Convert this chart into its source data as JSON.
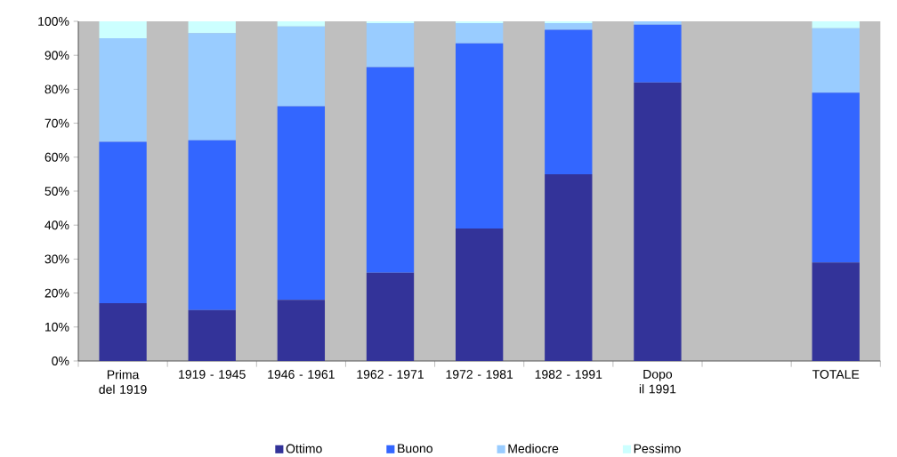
{
  "chart_data": {
    "type": "bar",
    "stacked": true,
    "categories": [
      "Prima del 1919",
      "1919 - 1945",
      "1946 - 1961",
      "1962 - 1971",
      "1972 - 1981",
      "1982 - 1991",
      "Dopo il 1991",
      null,
      "TOTALE"
    ],
    "series": [
      {
        "name": "Ottimo",
        "color": "#333399",
        "values": [
          17,
          15,
          18,
          26,
          39,
          55,
          82,
          null,
          29
        ]
      },
      {
        "name": "Buono",
        "color": "#3366ff",
        "values": [
          47.5,
          50,
          57,
          60.5,
          54.5,
          42.5,
          17,
          null,
          50
        ]
      },
      {
        "name": "Mediocre",
        "color": "#99ccff",
        "values": [
          30.5,
          31.5,
          23.5,
          13,
          6,
          2,
          1,
          null,
          19
        ]
      },
      {
        "name": "Pessimo",
        "color": "#ccffff",
        "values": [
          5,
          3.5,
          1.5,
          0.5,
          0.5,
          0.5,
          null,
          null,
          2
        ]
      }
    ],
    "ylim": [
      0,
      100
    ],
    "yticks": [
      {
        "value": 0,
        "label": "0%"
      },
      {
        "value": 10,
        "label": "10%"
      },
      {
        "value": 20,
        "label": "20%"
      },
      {
        "value": 30,
        "label": "30%"
      },
      {
        "value": 40,
        "label": "40%"
      },
      {
        "value": 50,
        "label": "50%"
      },
      {
        "value": 60,
        "label": "60%"
      },
      {
        "value": 70,
        "label": "70%"
      },
      {
        "value": 80,
        "label": "80%"
      },
      {
        "value": 90,
        "label": "90%"
      },
      {
        "value": 100,
        "label": "100%"
      }
    ],
    "legend": "bottom"
  }
}
